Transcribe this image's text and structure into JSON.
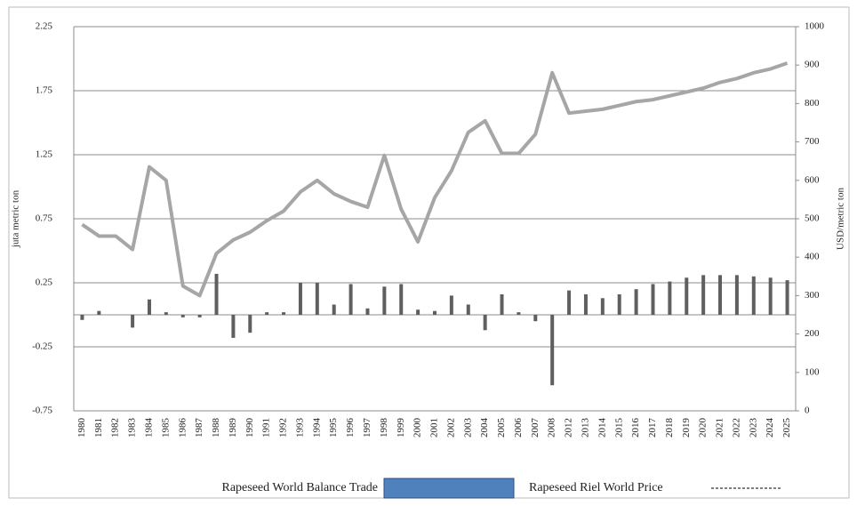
{
  "chart_data": {
    "type": "combo",
    "ylabel": "juta metric ton",
    "y2label": "USD/metric ton",
    "categories": [
      "1980",
      "1981",
      "1982",
      "1983",
      "1984",
      "1985",
      "1986",
      "1987",
      "1988",
      "1989",
      "1990",
      "1991",
      "1992",
      "1993",
      "1994",
      "1995",
      "1996",
      "1997",
      "1998",
      "1999",
      "2000",
      "2001",
      "2002",
      "2003",
      "2004",
      "2005",
      "2006",
      "2007",
      "2008",
      "2012",
      "2013",
      "2014",
      "2015",
      "2016",
      "2017",
      "2018",
      "2019",
      "2020",
      "2021",
      "2022",
      "2023",
      "2024",
      "2025"
    ],
    "series": [
      {
        "name": "Rapeseed World Balance Trade",
        "type": "bar",
        "color": "#5f5f5f",
        "legend_color": "#4f81bd",
        "values": [
          -0.04,
          0.03,
          0,
          -0.1,
          0.12,
          0.02,
          -0.02,
          -0.02,
          0.32,
          -0.18,
          -0.14,
          0.02,
          0.02,
          0.25,
          0.25,
          0.08,
          0.24,
          0.05,
          0.22,
          0.24,
          0.04,
          0.03,
          0.15,
          0.08,
          -0.12,
          0.16,
          0.02,
          -0.05,
          -0.55,
          0.19,
          0.16,
          0.13,
          0.16,
          0.2,
          0.24,
          0.26,
          0.29,
          0.31,
          0.31,
          0.31,
          0.3,
          0.29,
          0.27
        ]
      },
      {
        "name": "Rapeseed Riel World Price",
        "type": "line",
        "axis": "y2",
        "color": "#a6a6a6",
        "legend_color": "#555555",
        "values": [
          485,
          455,
          455,
          420,
          635,
          600,
          325,
          300,
          410,
          445,
          465,
          495,
          520,
          570,
          600,
          565,
          545,
          530,
          665,
          525,
          440,
          555,
          625,
          725,
          755,
          670,
          670,
          720,
          880,
          775,
          780,
          785,
          795,
          805,
          810,
          820,
          830,
          840,
          855,
          865,
          880,
          890,
          905
        ]
      }
    ],
    "ylim": [
      -0.75,
      2.25
    ],
    "yticks": [
      -0.75,
      -0.25,
      0.25,
      0.75,
      1.25,
      1.75,
      2.25
    ],
    "y2lim": [
      0,
      1000
    ],
    "y2ticks": [
      0,
      100,
      200,
      300,
      400,
      500,
      600,
      700,
      800,
      900,
      1000
    ],
    "grid": true
  }
}
